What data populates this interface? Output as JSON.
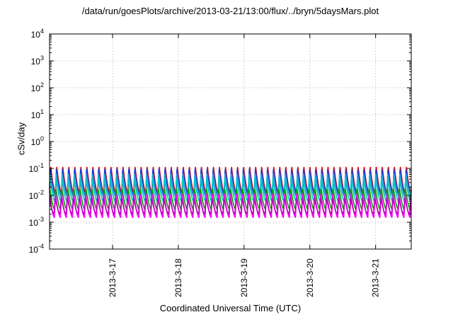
{
  "chart_data": {
    "type": "line",
    "title": "/data/run/goesPlots/archive/2013-03-21/13:00/flux/../bryn/5daysMars.plot",
    "xlabel": "Coordinated Universal Time (UTC)",
    "ylabel": "cSv/day",
    "y_scale": "log",
    "ylim": [
      0.0001,
      10000
    ],
    "y_ticks": [
      {
        "base": "10",
        "exp": "4"
      },
      {
        "base": "10",
        "exp": "3"
      },
      {
        "base": "10",
        "exp": "2"
      },
      {
        "base": "10",
        "exp": "1"
      },
      {
        "base": "10",
        "exp": "0"
      },
      {
        "base": "10",
        "exp": "-1"
      },
      {
        "base": "10",
        "exp": "-2"
      },
      {
        "base": "10",
        "exp": "-3"
      },
      {
        "base": "10",
        "exp": "-4"
      }
    ],
    "xlim": [
      "2013-03-16T01:00",
      "2013-03-21T13:00"
    ],
    "x_tick_labels": [
      "2013-3-17",
      "2013-3-18",
      "2013-3-19",
      "2013-3-20",
      "2013-3-21"
    ],
    "grid": true,
    "legend": "none",
    "oscillation_period_hours": 2.2,
    "series": [
      {
        "color": "#e00000",
        "peak": 0.12,
        "trough": 0.012
      },
      {
        "color": "#1a3ed8",
        "peak": 0.1,
        "trough": 0.01
      },
      {
        "color": "#2a9adf",
        "peak": 0.07,
        "trough": 0.009
      },
      {
        "color": "#00c8c8",
        "peak": 0.045,
        "trough": 0.006
      },
      {
        "color": "#00a000",
        "peak": 0.02,
        "trough": 0.003
      },
      {
        "color": "#ff00ff",
        "peak": 0.012,
        "trough": 0.0015
      },
      {
        "color": "#c000c0",
        "peak": 0.008,
        "trough": 0.002
      }
    ]
  }
}
